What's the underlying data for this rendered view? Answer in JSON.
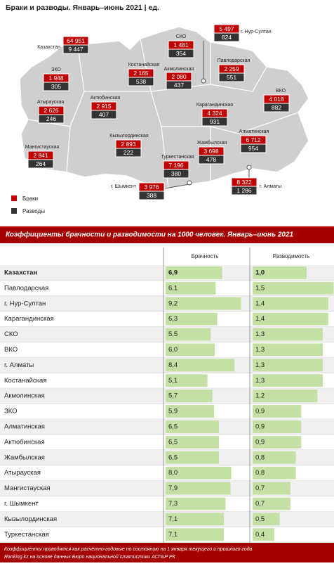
{
  "map": {
    "title": "Браки и разводы. Январь–июнь 2021 | ед.",
    "legend": [
      "Браки",
      "Разводы"
    ],
    "regions": [
      {
        "name": "Казахстан",
        "marriages": {
          "value": 64951,
          "label": "64 951"
        },
        "divorces": {
          "value": 9447,
          "label": "9 447"
        }
      },
      {
        "name": "СКО",
        "marriages": {
          "value": 1481,
          "label": "1 481"
        },
        "divorces": 354
      },
      {
        "name": "г. Нур-Султан",
        "marriages": {
          "value": 5497,
          "label": "5 497"
        },
        "divorces": 824
      },
      {
        "name": "Костанайская",
        "marriages": {
          "value": 2165,
          "label": "2 165"
        },
        "divorces": 538
      },
      {
        "name": "Акмолинская",
        "marriages": {
          "value": 2080,
          "label": "2 080"
        },
        "divorces": 437
      },
      {
        "name": "Павлодарская",
        "marriages": {
          "value": 2259,
          "label": "2 259"
        },
        "divorces": 551
      },
      {
        "name": "ЗКО",
        "marriages": {
          "value": 1948,
          "label": "1 948"
        },
        "divorces": 305
      },
      {
        "name": "ВКО",
        "marriages": {
          "value": 4018,
          "label": "4 018"
        },
        "divorces": 882
      },
      {
        "name": "Актюбинская",
        "marriages": {
          "value": 2915,
          "label": "2 915"
        },
        "divorces": 407
      },
      {
        "name": "Атырауская",
        "marriages": {
          "value": 2626,
          "label": "2 626"
        },
        "divorces": 246
      },
      {
        "name": "Карагандинская",
        "marriages": {
          "value": 4324,
          "label": "4 324"
        },
        "divorces": 931
      },
      {
        "name": "Алматинская",
        "marriages": {
          "value": 6712,
          "label": "6 712"
        },
        "divorces": 954
      },
      {
        "name": "Кызылординская",
        "marriages": {
          "value": 2893,
          "label": "2 893"
        },
        "divorces": 222
      },
      {
        "name": "Мангистауская",
        "marriages": {
          "value": 2841,
          "label": "2 841"
        },
        "divorces": 264
      },
      {
        "name": "Жамбылская",
        "marriages": {
          "value": 3698,
          "label": "3 698"
        },
        "divorces": 478
      },
      {
        "name": "Туркестанская",
        "marriages": {
          "value": 7196,
          "label": "7 196"
        },
        "divorces": 380
      },
      {
        "name": "г. Алматы",
        "marriages": {
          "value": 8322,
          "label": "8 322"
        },
        "divorces": {
          "value": 1286,
          "label": "1 286"
        }
      },
      {
        "name": "г. Шымкент",
        "marriages": {
          "value": 3976,
          "label": "3 976"
        },
        "divorces": 388
      }
    ]
  },
  "table": {
    "title": "Коэффициенты брачности и разводимости на 1000 человек. Январь–июнь 2021",
    "columns": [
      "Брачность",
      "Разводимость"
    ],
    "rows": [
      {
        "name": "Казахстан",
        "marriage": {
          "value": 6.9,
          "label": "6,9"
        },
        "divorce": {
          "value": 1.0,
          "label": "1,0"
        }
      },
      {
        "name": "Павлодарская",
        "marriage": {
          "value": 6.1,
          "label": "6,1"
        },
        "divorce": {
          "value": 1.5,
          "label": "1,5"
        }
      },
      {
        "name": "г. Нур-Султан",
        "marriage": {
          "value": 9.2,
          "label": "9,2"
        },
        "divorce": {
          "value": 1.4,
          "label": "1,4"
        }
      },
      {
        "name": "Карагандинская",
        "marriage": {
          "value": 6.3,
          "label": "6,3"
        },
        "divorce": {
          "value": 1.4,
          "label": "1,4"
        }
      },
      {
        "name": "СКО",
        "marriage": {
          "value": 5.5,
          "label": "5,5"
        },
        "divorce": {
          "value": 1.3,
          "label": "1,3"
        }
      },
      {
        "name": "ВКО",
        "marriage": {
          "value": 6.0,
          "label": "6,0"
        },
        "divorce": {
          "value": 1.3,
          "label": "1,3"
        }
      },
      {
        "name": "г. Алматы",
        "marriage": {
          "value": 8.4,
          "label": "8,4"
        },
        "divorce": {
          "value": 1.3,
          "label": "1,3"
        }
      },
      {
        "name": "Костанайская",
        "marriage": {
          "value": 5.1,
          "label": "5,1"
        },
        "divorce": {
          "value": 1.3,
          "label": "1,3"
        }
      },
      {
        "name": "Акмолинская",
        "marriage": {
          "value": 5.7,
          "label": "5,7"
        },
        "divorce": {
          "value": 1.2,
          "label": "1,2"
        }
      },
      {
        "name": "ЗКО",
        "marriage": {
          "value": 5.9,
          "label": "5,9"
        },
        "divorce": {
          "value": 0.9,
          "label": "0,9"
        }
      },
      {
        "name": "Алматинская",
        "marriage": {
          "value": 6.5,
          "label": "6,5"
        },
        "divorce": {
          "value": 0.9,
          "label": "0,9"
        }
      },
      {
        "name": "Актюбинская",
        "marriage": {
          "value": 6.5,
          "label": "6,5"
        },
        "divorce": {
          "value": 0.9,
          "label": "0,9"
        }
      },
      {
        "name": "Жамбылская",
        "marriage": {
          "value": 6.5,
          "label": "6,5"
        },
        "divorce": {
          "value": 0.8,
          "label": "0,8"
        }
      },
      {
        "name": "Атырауская",
        "marriage": {
          "value": 8.0,
          "label": "8,0"
        },
        "divorce": {
          "value": 0.8,
          "label": "0,8"
        }
      },
      {
        "name": "Мангистауская",
        "marriage": {
          "value": 7.9,
          "label": "7,9"
        },
        "divorce": {
          "value": 0.7,
          "label": "0,7"
        }
      },
      {
        "name": "г. Шымкент",
        "marriage": {
          "value": 7.3,
          "label": "7,3"
        },
        "divorce": {
          "value": 0.7,
          "label": "0,7"
        }
      },
      {
        "name": "Кызылординская",
        "marriage": {
          "value": 7.1,
          "label": "7,1"
        },
        "divorce": {
          "value": 0.5,
          "label": "0,5"
        }
      },
      {
        "name": "Туркестанская",
        "marriage": {
          "value": 7.1,
          "label": "7,1"
        },
        "divorce": {
          "value": 0.4,
          "label": "0,4"
        }
      }
    ]
  },
  "footer": [
    "Коэффициенты приводятся как расчётно-годовые по состоянию на 1 января текущего и прошлого года",
    "Ranking.kz на основе данных Бюро национальной статистики АСПиР РК"
  ]
}
